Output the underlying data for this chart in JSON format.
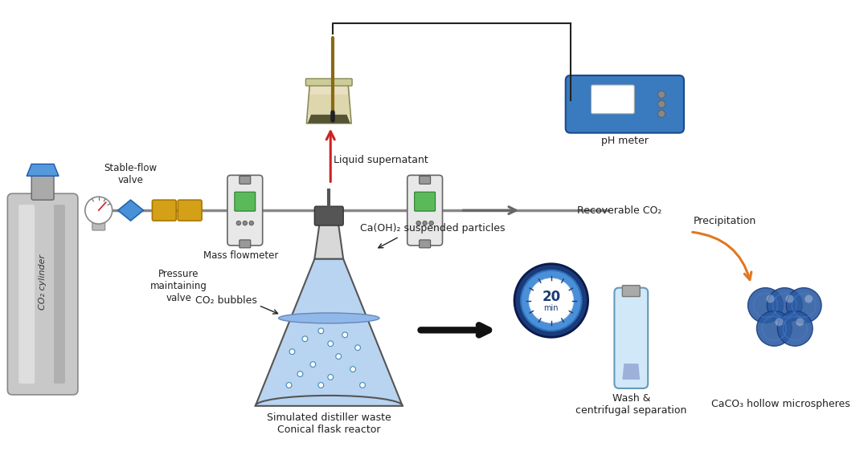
{
  "bg": "#ffffff",
  "text_color": "#222222",
  "cylinder_body": "#c0c0c0",
  "yellow_rect": "#d4a017",
  "pipe_color": "#888888",
  "flask_body": "#b8d4f0",
  "ph_meter_blue": "#3a7abf",
  "timer_dark": "#1a3a7a",
  "timer_light": "#4a90d9",
  "caco3_sphere": "#2a5aa0",
  "arrow_orange": "#e07820",
  "arrow_red": "#cc2222",
  "arrow_gray": "#666666",
  "mass_flowmeter_green": "#4a9a4a",
  "label_co2_cylinder": "CO₂ cylinder",
  "label_pressure_valve": "Pressure\nmaintaining\nvalve",
  "label_stable_flow": "Stable-flow\nvalve",
  "label_mass_flowmeter": "Mass flowmeter",
  "label_liquid_super": "Liquid supernatant",
  "label_recoverable": "Recoverable CO₂",
  "label_ph_meter": "pH meter",
  "label_ca_oh2": "Ca(OH)₂ suspended particles",
  "label_co2_bubbles": "CO₂ bubbles",
  "label_simulated": "Simulated distiller waste\nConical flask reactor",
  "label_wash": "Wash &\ncentrifugal separation",
  "label_precipitation": "Precipitation",
  "label_caco3": "CaCO₃ hollow microspheres",
  "label_20min": "20",
  "label_min": "min"
}
